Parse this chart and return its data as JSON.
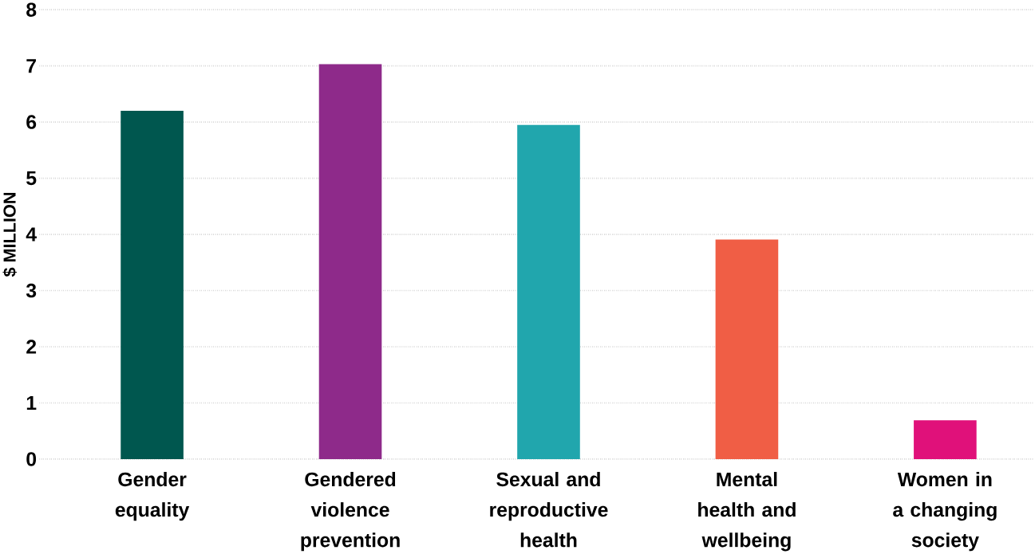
{
  "chart_data": {
    "type": "bar",
    "ylabel": "$ MILLION",
    "categories": [
      "Gender equality",
      "Gendered violence prevention",
      "Sexual and reproductive health",
      "Mental health and wellbeing",
      "Women in a changing society"
    ],
    "values": [
      6.2,
      7.03,
      5.95,
      3.91,
      0.69
    ],
    "colors": [
      "#00574f",
      "#8e2a8a",
      "#21a6ad",
      "#f05e45",
      "#e0117a"
    ],
    "ylim": [
      0,
      8
    ],
    "yticks": [
      0,
      1,
      2,
      3,
      4,
      5,
      6,
      7,
      8
    ],
    "grid": "y"
  }
}
